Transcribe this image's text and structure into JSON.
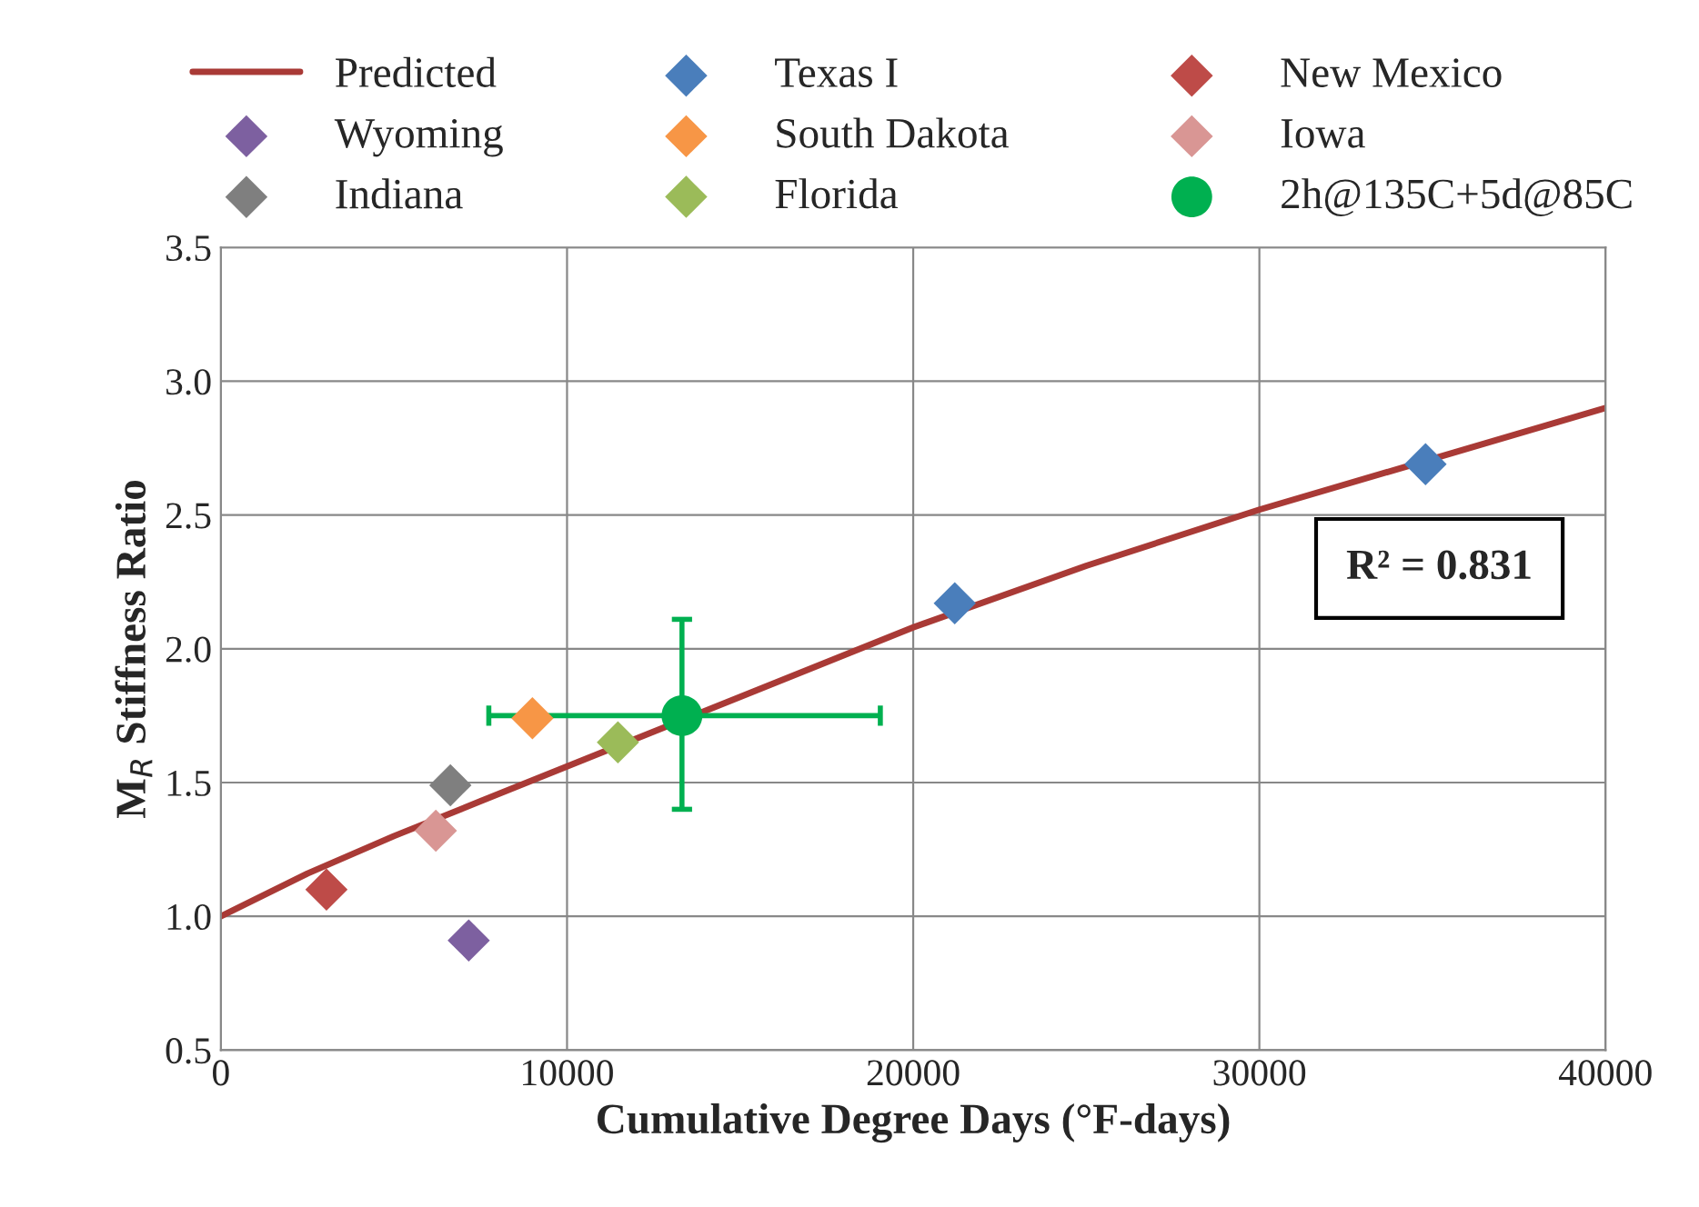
{
  "chart_data": {
    "type": "scatter",
    "xlabel": "Cumulative Degree Days (°F-days)",
    "ylabel": "M$_{R}$ Stiffness Ratio",
    "xlim": [
      0,
      40000
    ],
    "xticks": [
      0,
      10000,
      20000,
      30000,
      40000
    ],
    "ylim": [
      0.5,
      3.5
    ],
    "yticks": [
      {
        "value": 0.5,
        "label": "0.5"
      },
      {
        "value": 1.0,
        "label": "1.0"
      },
      {
        "value": 1.5,
        "label": "1.5"
      },
      {
        "value": 2.0,
        "label": "2.0"
      },
      {
        "value": 2.5,
        "label": "2.5"
      },
      {
        "value": 3.0,
        "label": "3.0"
      },
      {
        "value": 3.5,
        "label": "3.5"
      }
    ],
    "grid": true,
    "legend": "top",
    "annotations": [
      "R² = 0.831"
    ],
    "series": [
      {
        "name": "Predicted",
        "type": "line",
        "color": "#a93a36",
        "marker": "none",
        "x": [
          0,
          2500,
          5000,
          7500,
          10000,
          15000,
          20000,
          25000,
          30000,
          35000,
          40000
        ],
        "values": [
          1.0,
          1.16,
          1.3,
          1.43,
          1.56,
          1.82,
          2.08,
          2.31,
          2.52,
          2.71,
          2.9
        ]
      },
      {
        "name": "Texas I",
        "color": "#4a7ebb",
        "marker": "diamond",
        "x": [
          21200,
          34800
        ],
        "values": [
          2.17,
          2.69
        ]
      },
      {
        "name": "New Mexico",
        "color": "#be4b48",
        "marker": "diamond",
        "x": [
          3050
        ],
        "values": [
          1.1
        ]
      },
      {
        "name": "Wyoming",
        "color": "#7d60a0",
        "marker": "diamond",
        "x": [
          7160
        ],
        "values": [
          0.91
        ]
      },
      {
        "name": "South Dakota",
        "color": "#f79646",
        "marker": "diamond",
        "x": [
          9000
        ],
        "values": [
          1.74
        ]
      },
      {
        "name": "Iowa",
        "color": "#d99694",
        "marker": "diamond",
        "x": [
          6210
        ],
        "values": [
          1.32
        ]
      },
      {
        "name": "Indiana",
        "color": "#7f7f7f",
        "marker": "diamond",
        "x": [
          6630
        ],
        "values": [
          1.49
        ]
      },
      {
        "name": "Florida",
        "color": "#9bbb59",
        "marker": "diamond",
        "x": [
          11470
        ],
        "values": [
          1.65
        ]
      },
      {
        "name": "2h@135C+5d@85C",
        "color": "#00b050",
        "marker": "circle",
        "x": [
          13320
        ],
        "values": [
          1.75
        ],
        "errors": [
          [
            1.4,
            2.11
          ]
        ],
        "xerrors": [
          [
            7740,
            19050
          ]
        ]
      }
    ]
  }
}
